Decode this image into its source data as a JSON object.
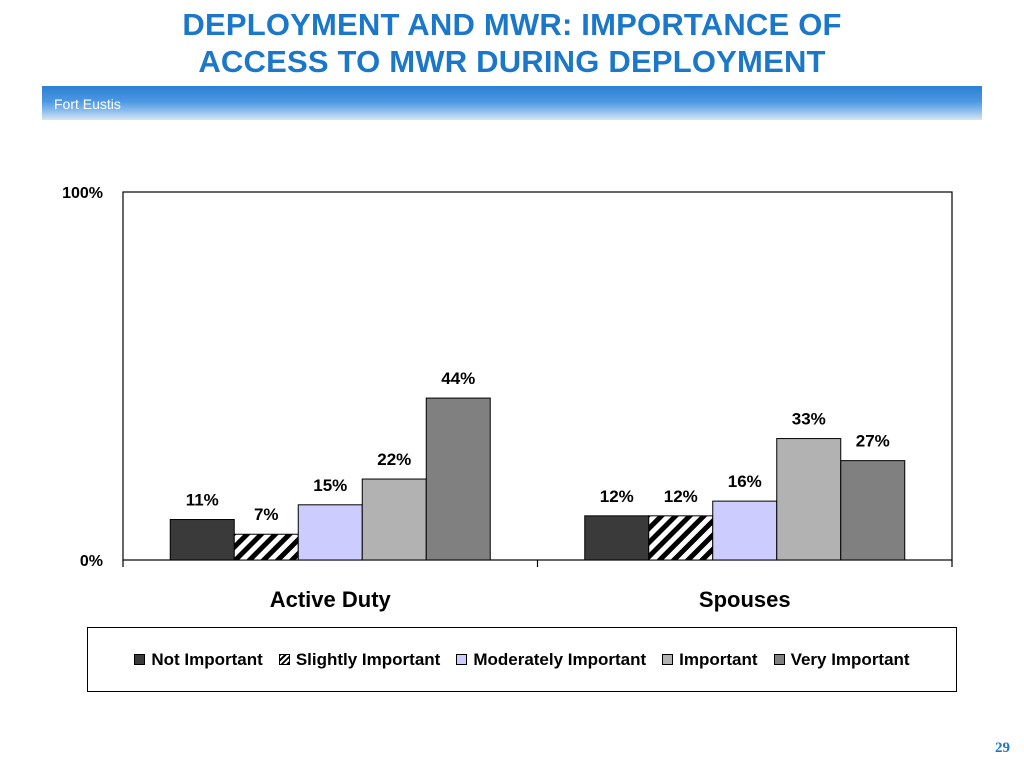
{
  "slide": {
    "title_line1": "DEPLOYMENT AND MWR: IMPORTANCE OF",
    "title_line2": "ACCESS TO MWR DURING DEPLOYMENT",
    "banner_text": "Fort Eustis",
    "page_number": "29"
  },
  "colors": {
    "title": "#1a77c9",
    "not_important": "#3a3a3a",
    "slightly_important": "hatched black/white",
    "moderately_important": "#ccccff",
    "important": "#b2b2b2",
    "very_important": "#808080"
  },
  "chart_data": {
    "type": "bar",
    "categories": [
      "Active Duty",
      "Spouses"
    ],
    "series": [
      {
        "name": "Not Important",
        "values": [
          11,
          12
        ],
        "labels": [
          "11%",
          "12%"
        ],
        "color": "#3a3a3a",
        "pattern": "solid"
      },
      {
        "name": "Slightly Important",
        "values": [
          7,
          12
        ],
        "labels": [
          "7%",
          "12%"
        ],
        "color": "#000000",
        "pattern": "hatch"
      },
      {
        "name": "Moderately Important",
        "values": [
          15,
          16
        ],
        "labels": [
          "15%",
          "16%"
        ],
        "color": "#ccccff",
        "pattern": "solid"
      },
      {
        "name": "Important",
        "values": [
          22,
          33
        ],
        "labels": [
          "22%",
          "33%"
        ],
        "color": "#b2b2b2",
        "pattern": "solid"
      },
      {
        "name": "Very Important",
        "values": [
          44,
          27
        ],
        "labels": [
          "44%",
          "27%"
        ],
        "color": "#808080",
        "pattern": "solid"
      }
    ],
    "yticks": [
      "0%",
      "100%"
    ],
    "ylim": [
      0,
      100
    ],
    "xlabel": "",
    "ylabel": "",
    "grid": false,
    "legend_position": "bottom"
  }
}
